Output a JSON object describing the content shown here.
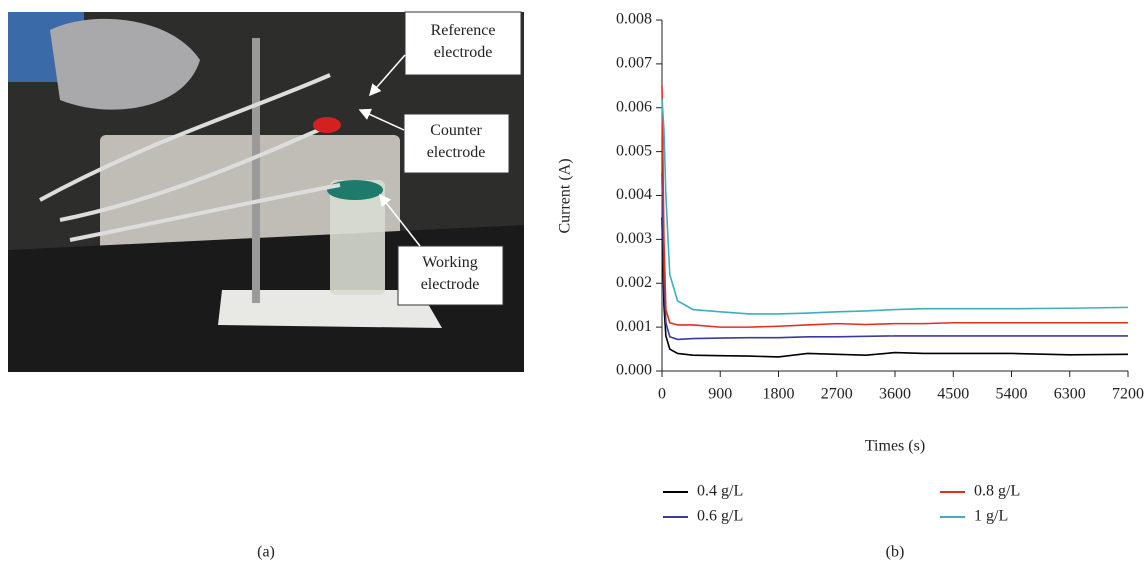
{
  "photo": {
    "labels": [
      "Reference electrode",
      "Counter electrode",
      "Working electrode"
    ],
    "caption": "(a)"
  },
  "chart_data": {
    "type": "line",
    "caption": "(b)",
    "x_label": "Times (s)",
    "y_label": "Current (A)",
    "x": [
      0,
      30,
      60,
      120,
      240,
      480,
      900,
      1350,
      1800,
      2250,
      2700,
      3150,
      3600,
      4050,
      4500,
      5400,
      6300,
      7200
    ],
    "series": [
      {
        "name": "0.4 g/L",
        "color": "#000000",
        "values": [
          0.0035,
          0.0015,
          0.0008,
          0.0005,
          0.0004,
          0.00036,
          0.00035,
          0.00034,
          0.00032,
          0.0004,
          0.00038,
          0.00036,
          0.00042,
          0.0004,
          0.0004,
          0.0004,
          0.00037,
          0.00038
        ]
      },
      {
        "name": "0.6 g/L",
        "color": "#3b3b9e",
        "values": [
          0.0045,
          0.002,
          0.0011,
          0.00078,
          0.00072,
          0.00074,
          0.00075,
          0.00076,
          0.00076,
          0.00078,
          0.00078,
          0.00079,
          0.0008,
          0.0008,
          0.0008,
          0.0008,
          0.0008,
          0.0008
        ]
      },
      {
        "name": "0.8 g/L",
        "color": "#e03020",
        "values": [
          0.0065,
          0.003,
          0.0014,
          0.0011,
          0.00105,
          0.00105,
          0.001,
          0.001,
          0.00102,
          0.00105,
          0.00108,
          0.00106,
          0.00108,
          0.00108,
          0.0011,
          0.0011,
          0.0011,
          0.0011
        ]
      },
      {
        "name": "1 g/L",
        "color": "#3eaebf",
        "values": [
          0.0062,
          0.0055,
          0.004,
          0.0022,
          0.0016,
          0.0014,
          0.00135,
          0.0013,
          0.0013,
          0.00132,
          0.00135,
          0.00137,
          0.0014,
          0.00142,
          0.00142,
          0.00142,
          0.00143,
          0.00145
        ]
      }
    ],
    "xlim": [
      0,
      7200
    ],
    "xticks": [
      0,
      900,
      1800,
      2700,
      3600,
      4500,
      5400,
      6300,
      7200
    ],
    "ylim": [
      0,
      0.008
    ],
    "yticks": [
      {
        "value": 0,
        "label": "0.000"
      },
      {
        "value": 0.001,
        "label": "0.001"
      },
      {
        "value": 0.002,
        "label": "0.002"
      },
      {
        "value": 0.003,
        "label": "0.003"
      },
      {
        "value": 0.004,
        "label": "0.004"
      },
      {
        "value": 0.005,
        "label": "0.005"
      },
      {
        "value": 0.006,
        "label": "0.006"
      },
      {
        "value": 0.007,
        "label": "0.007"
      },
      {
        "value": 0.008,
        "label": "0.008"
      }
    ]
  }
}
